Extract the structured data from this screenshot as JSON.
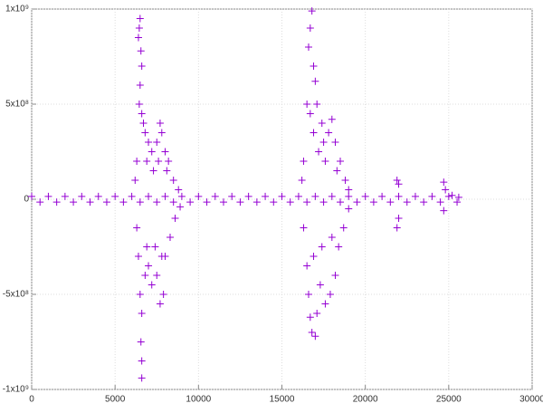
{
  "chart_data": {
    "type": "scatter",
    "color": "#9400d3",
    "marker": "+",
    "grid": true,
    "xlim": [
      0,
      30000
    ],
    "ylim": [
      -1000000000,
      1000000000
    ],
    "xticks": [
      0,
      5000,
      10000,
      15000,
      20000,
      25000,
      30000
    ],
    "yticks": [
      {
        "value": -1000000000,
        "label": "-1x10⁹"
      },
      {
        "value": -500000000,
        "label": "-5x10⁸"
      },
      0,
      {
        "value": 500000000,
        "label": "5x10⁸"
      },
      {
        "value": 1000000000,
        "label": "1x10⁹"
      }
    ],
    "x": [
      0,
      500,
      1000,
      1500,
      2000,
      2500,
      3000,
      3500,
      4000,
      4500,
      5000,
      5500,
      6000,
      6500,
      7000,
      7500,
      8000,
      8500,
      9000,
      9500,
      10000,
      10500,
      11000,
      11500,
      12000,
      12500,
      13000,
      13500,
      14000,
      14500,
      15000,
      15500,
      16000,
      16500,
      17000,
      17500,
      18000,
      18500,
      19000,
      19500,
      20000,
      20500,
      21000,
      21500,
      22000,
      22500,
      23000,
      23500,
      24000,
      24500,
      25000,
      25500,
      6500,
      6450,
      6400,
      6550,
      6600,
      6500,
      6450,
      6600,
      6700,
      6800,
      7000,
      7200,
      7500,
      7700,
      7800,
      8000,
      8200,
      8500,
      8800,
      6300,
      6200,
      6900,
      7300,
      7600,
      8100,
      6300,
      6400,
      6500,
      6600,
      6550,
      6600,
      6600,
      6800,
      7000,
      7200,
      7500,
      7700,
      7900,
      8000,
      8300,
      8600,
      6900,
      7400,
      7800,
      8900,
      16800,
      16700,
      16600,
      16900,
      17000,
      16500,
      17100,
      16700,
      17400,
      17800,
      18000,
      18200,
      18500,
      18800,
      16300,
      16200,
      17200,
      17600,
      18300,
      19000,
      16900,
      17500,
      16300,
      16500,
      16600,
      16700,
      16800,
      17000,
      17100,
      17300,
      17600,
      17900,
      18200,
      18400,
      18700,
      16900,
      17400,
      18000,
      19000,
      21900,
      22000,
      21900,
      22000,
      24700,
      24800,
      24700,
      25200,
      25600
    ],
    "values": [
      15000000,
      -15000000,
      15000000,
      -15000000,
      15000000,
      -15000000,
      15000000,
      -15000000,
      15000000,
      -15000000,
      15000000,
      -15000000,
      15000000,
      -15000000,
      15000000,
      -15000000,
      15000000,
      -15000000,
      15000000,
      -15000000,
      15000000,
      -15000000,
      15000000,
      -15000000,
      15000000,
      -15000000,
      15000000,
      -15000000,
      15000000,
      -15000000,
      15000000,
      -15000000,
      15000000,
      -15000000,
      15000000,
      -15000000,
      15000000,
      -15000000,
      15000000,
      -15000000,
      15000000,
      -15000000,
      15000000,
      -15000000,
      15000000,
      -15000000,
      15000000,
      -15000000,
      15000000,
      -15000000,
      15000000,
      -15000000,
      950000000,
      900000000,
      850000000,
      780000000,
      700000000,
      600000000,
      500000000,
      450000000,
      400000000,
      350000000,
      300000000,
      250000000,
      300000000,
      400000000,
      350000000,
      250000000,
      200000000,
      100000000,
      50000000,
      200000000,
      100000000,
      200000000,
      150000000,
      200000000,
      150000000,
      -150000000,
      -300000000,
      -500000000,
      -600000000,
      -750000000,
      -850000000,
      -940000000,
      -400000000,
      -350000000,
      -450000000,
      -400000000,
      -550000000,
      -500000000,
      -300000000,
      -200000000,
      -100000000,
      -250000000,
      -250000000,
      -300000000,
      -40000000,
      990000000,
      900000000,
      800000000,
      700000000,
      620000000,
      500000000,
      500000000,
      450000000,
      400000000,
      350000000,
      420000000,
      300000000,
      200000000,
      100000000,
      200000000,
      100000000,
      250000000,
      200000000,
      150000000,
      50000000,
      350000000,
      300000000,
      -150000000,
      -350000000,
      -500000000,
      -620000000,
      -700000000,
      -720000000,
      -600000000,
      -450000000,
      -550000000,
      -500000000,
      -400000000,
      -250000000,
      -150000000,
      -300000000,
      -250000000,
      -200000000,
      -50000000,
      100000000,
      80000000,
      -150000000,
      -100000000,
      90000000,
      50000000,
      -60000000,
      20000000,
      10000000
    ]
  }
}
